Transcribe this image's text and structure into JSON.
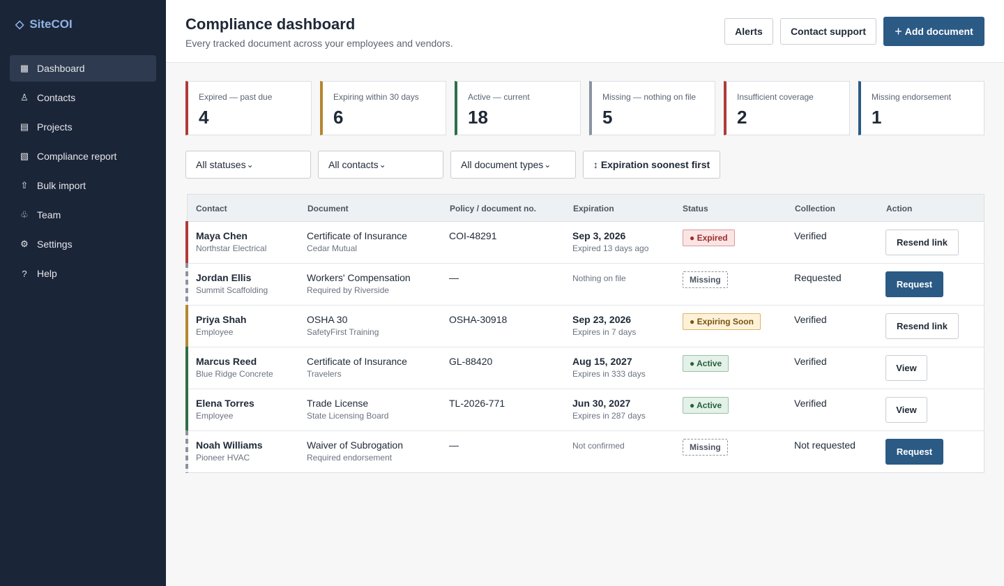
{
  "app": {
    "name": "SiteCOI",
    "logo_icon": "◇"
  },
  "sidebar": {
    "items": [
      {
        "label": "Dashboard",
        "icon": "▦",
        "active": true
      },
      {
        "label": "Contacts",
        "icon": "♙"
      },
      {
        "label": "Projects",
        "icon": "▤"
      },
      {
        "label": "Compliance report",
        "icon": "▧"
      },
      {
        "label": "Bulk import",
        "icon": "⇧"
      },
      {
        "label": "Team",
        "icon": "♧"
      },
      {
        "label": "Settings",
        "icon": "⚙"
      },
      {
        "label": "Help",
        "icon": "?"
      }
    ]
  },
  "header": {
    "title": "Compliance dashboard",
    "subtitle": "Every tracked document across your employees and vendors.",
    "alerts_label": "Alerts",
    "support_label": "Contact support",
    "add_label": "Add document",
    "add_icon": "+"
  },
  "stats": [
    {
      "label": "Expired — past due",
      "value": "4",
      "color": "#b03a3a"
    },
    {
      "label": "Expiring within 30 days",
      "value": "6",
      "color": "#b5862f"
    },
    {
      "label": "Active — current",
      "value": "18",
      "color": "#2f6e47"
    },
    {
      "label": "Missing — nothing on file",
      "value": "5",
      "color": "#8a93a0"
    },
    {
      "label": "Insufficient coverage",
      "value": "2",
      "color": "#b03a3a"
    },
    {
      "label": "Missing endorsement",
      "value": "1",
      "color": "#2b5a85"
    }
  ],
  "filters": {
    "status": "All statuses",
    "contacts": "All contacts",
    "doc_types": "All document types",
    "chevron": "⌄",
    "sort_icon": "↕",
    "sort": "Expiration soonest first"
  },
  "table": {
    "headers": {
      "contact": "Contact",
      "document": "Document",
      "policy": "Policy / document no.",
      "expiration": "Expiration",
      "status": "Status",
      "collection": "Collection",
      "action": "Action"
    },
    "rows": [
      {
        "name": "Maya Chen",
        "org": "Northstar Electrical",
        "doc": "Certificate of Insurance",
        "doc_sub": "Cedar Mutual",
        "policy": "COI-48291",
        "exp_date": "Sep 3, 2026",
        "exp_note": "Expired 13 days ago",
        "status": "● Expired",
        "status_kind": "expired",
        "collection": "Verified",
        "action": "Resend link",
        "action_kind": "secondary",
        "bar_color": "#b03a3a"
      },
      {
        "name": "Jordan Ellis",
        "org": "Summit Scaffolding",
        "doc": "Workers' Compensation",
        "doc_sub": "Required by Riverside",
        "policy": "—",
        "exp_date": "",
        "exp_note": "Nothing on file",
        "status": "Missing",
        "status_kind": "missing",
        "collection": "Requested",
        "action": "Request",
        "action_kind": "primary",
        "bar_color": "#8a93a0"
      },
      {
        "name": "Priya Shah",
        "org": "Employee",
        "doc": "OSHA 30",
        "doc_sub": "SafetyFirst Training",
        "policy": "OSHA-30918",
        "exp_date": "Sep 23, 2026",
        "exp_note": "Expires in 7 days",
        "status": "● Expiring Soon",
        "status_kind": "soon",
        "collection": "Verified",
        "action": "Resend link",
        "action_kind": "secondary",
        "bar_color": "#b5862f"
      },
      {
        "name": "Marcus Reed",
        "org": "Blue Ridge Concrete",
        "doc": "Certificate of Insurance",
        "doc_sub": "Travelers",
        "policy": "GL-88420",
        "exp_date": "Aug 15, 2027",
        "exp_note": "Expires in 333 days",
        "status": "● Active",
        "status_kind": "active",
        "collection": "Verified",
        "action": "View",
        "action_kind": "secondary",
        "bar_color": "#2f6e47"
      },
      {
        "name": "Elena Torres",
        "org": "Employee",
        "doc": "Trade License",
        "doc_sub": "State Licensing Board",
        "policy": "TL-2026-771",
        "exp_date": "Jun 30, 2027",
        "exp_note": "Expires in 287 days",
        "status": "● Active",
        "status_kind": "active",
        "collection": "Verified",
        "action": "View",
        "action_kind": "secondary",
        "bar_color": "#2f6e47"
      },
      {
        "name": "Noah Williams",
        "org": "Pioneer HVAC",
        "doc": "Waiver of Subrogation",
        "doc_sub": "Required endorsement",
        "policy": "—",
        "exp_date": "",
        "exp_note": "Not confirmed",
        "status": "Missing",
        "status_kind": "missing",
        "collection": "Not requested",
        "action": "Request",
        "action_kind": "primary",
        "bar_color": "#8a93a0"
      }
    ]
  }
}
